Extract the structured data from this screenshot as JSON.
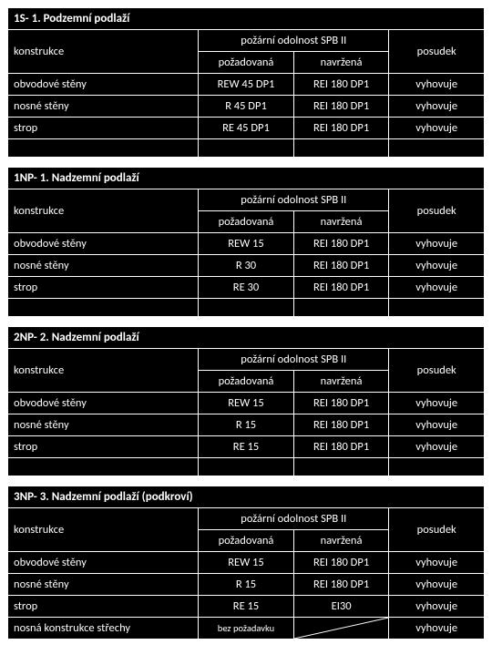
{
  "colors": {
    "bg": "#000000",
    "fg": "#ffffff",
    "border": "#ffffff"
  },
  "header_labels": {
    "konstrukce": "konstrukce",
    "pozarni": "požární odolnost SPB II",
    "pozadovana": "požadovaná",
    "navrzena": "navržená",
    "posudek": "posudek"
  },
  "sections": [
    {
      "title": "1S- 1. Podzemní podlaží",
      "rows": [
        {
          "konstrukce": "obvodové stěny",
          "pozad": "REW 45 DP1",
          "navr": "REI 180 DP1",
          "posudek": "vyhovuje"
        },
        {
          "konstrukce": "nosné stěny",
          "pozad": "R 45 DP1",
          "navr": "REI 180 DP1",
          "posudek": "vyhovuje"
        },
        {
          "konstrukce": "strop",
          "pozad": "RE 45 DP1",
          "navr": "REI 180 DP1",
          "posudek": "vyhovuje"
        }
      ],
      "trailing_empty": true
    },
    {
      "title": "1NP- 1. Nadzemní podlaží",
      "rows": [
        {
          "konstrukce": "obvodové stěny",
          "pozad": "REW 15",
          "navr": "REI 180 DP1",
          "posudek": "vyhovuje"
        },
        {
          "konstrukce": "nosné stěny",
          "pozad": "R 30",
          "navr": "REI 180 DP1",
          "posudek": "vyhovuje"
        },
        {
          "konstrukce": "strop",
          "pozad": "RE 30",
          "navr": "REI 180 DP1",
          "posudek": "vyhovuje"
        }
      ],
      "trailing_empty": true
    },
    {
      "title": "2NP- 2. Nadzemní podlaží",
      "rows": [
        {
          "konstrukce": "obvodové stěny",
          "pozad": "REW 15",
          "navr": "REI 180 DP1",
          "posudek": "vyhovuje"
        },
        {
          "konstrukce": "nosné stěny",
          "pozad": "R 15",
          "navr": "REI 180 DP1",
          "posudek": "vyhovuje"
        },
        {
          "konstrukce": "strop",
          "pozad": "RE 15",
          "navr": "REI 180 DP1",
          "posudek": "vyhovuje"
        }
      ],
      "trailing_empty": true
    },
    {
      "title": "3NP- 3. Nadzemní podlaží (podkroví)",
      "rows": [
        {
          "konstrukce": "obvodové stěny",
          "pozad": "REW 15",
          "navr": "REI 180 DP1",
          "posudek": "vyhovuje"
        },
        {
          "konstrukce": "nosné stěny",
          "pozad": "R 15",
          "navr": "REI 180 DP1",
          "posudek": "vyhovuje"
        },
        {
          "konstrukce": "strop",
          "pozad": "RE 15",
          "navr": "EI30",
          "posudek": "vyhovuje"
        },
        {
          "konstrukce": "nosná konstrukce střechy",
          "pozad": "bez požadavku",
          "navr": "__DIAG__",
          "posudek": "vyhovuje",
          "small_pozad": true
        }
      ],
      "trailing_empty": false
    }
  ]
}
